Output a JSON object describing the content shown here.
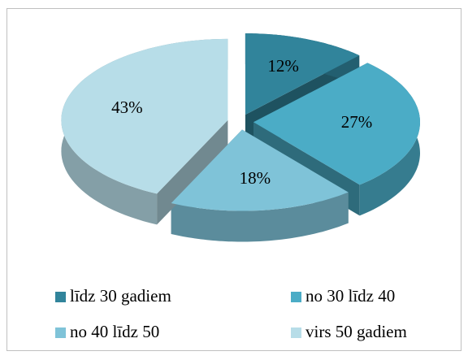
{
  "chart_data": {
    "type": "pie",
    "categories": [
      "līdz 30 gadiem",
      "no 30 līdz 40",
      "no 40 līdz 50",
      "virs 50 gadiem"
    ],
    "values": [
      12,
      27,
      18,
      43
    ],
    "value_labels": [
      "12%",
      "27%",
      "18%",
      "43%"
    ],
    "colors": [
      "#31849b",
      "#4bacc6",
      "#7fc3d8",
      "#b7dde8"
    ],
    "legend": "bottom"
  }
}
